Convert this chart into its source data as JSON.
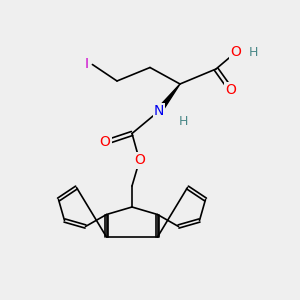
{
  "background_color": "#efefef",
  "bond_color": "#000000",
  "atoms": {
    "I": {
      "color": "#cc00cc"
    },
    "O": {
      "color": "#ff0000"
    },
    "N": {
      "color": "#0000ee"
    },
    "H": {
      "color": "#4a8888"
    }
  },
  "figsize": [
    3.0,
    3.0
  ],
  "dpi": 100
}
